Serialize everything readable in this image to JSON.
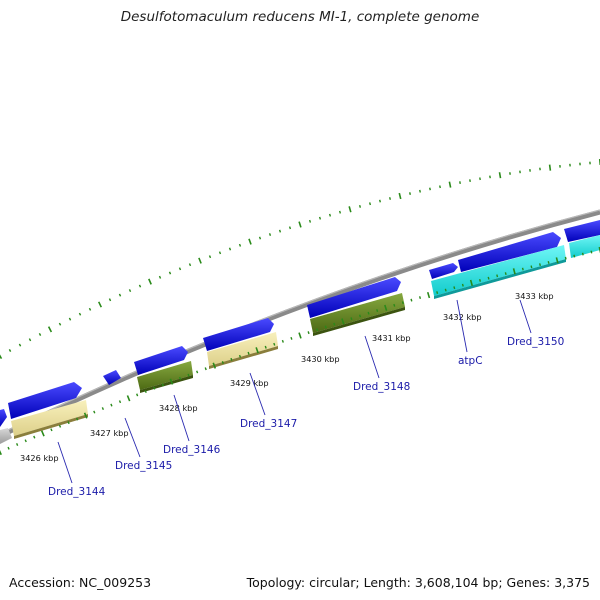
{
  "title": "Desulfotomaculum reducens MI-1, complete genome",
  "footer": {
    "accession": "Accession: NC_009253",
    "topology": "Topology: circular; Length: 3,608,104 bp; Genes: 3,375"
  },
  "colors": {
    "backbone": "#8c8c8c",
    "cds": "#1616e0",
    "dots": "#2a8a1a",
    "yellow_feature": "#f0e6a0",
    "green_feature": "#6a8e26",
    "cyan_feature": "#22e6e6",
    "gray_feature": "#bdbdbd"
  },
  "tick_labels": [
    "3426 kbp",
    "3427 kbp",
    "3428 kbp",
    "3429 kbp",
    "3430 kbp",
    "3431 kbp",
    "3432 kbp",
    "3433 kbp"
  ],
  "gene_labels": [
    "Dred_3144",
    "Dred_3145",
    "Dred_3146",
    "Dred_3147",
    "Dred_3148",
    "atpC",
    "Dred_3150"
  ]
}
